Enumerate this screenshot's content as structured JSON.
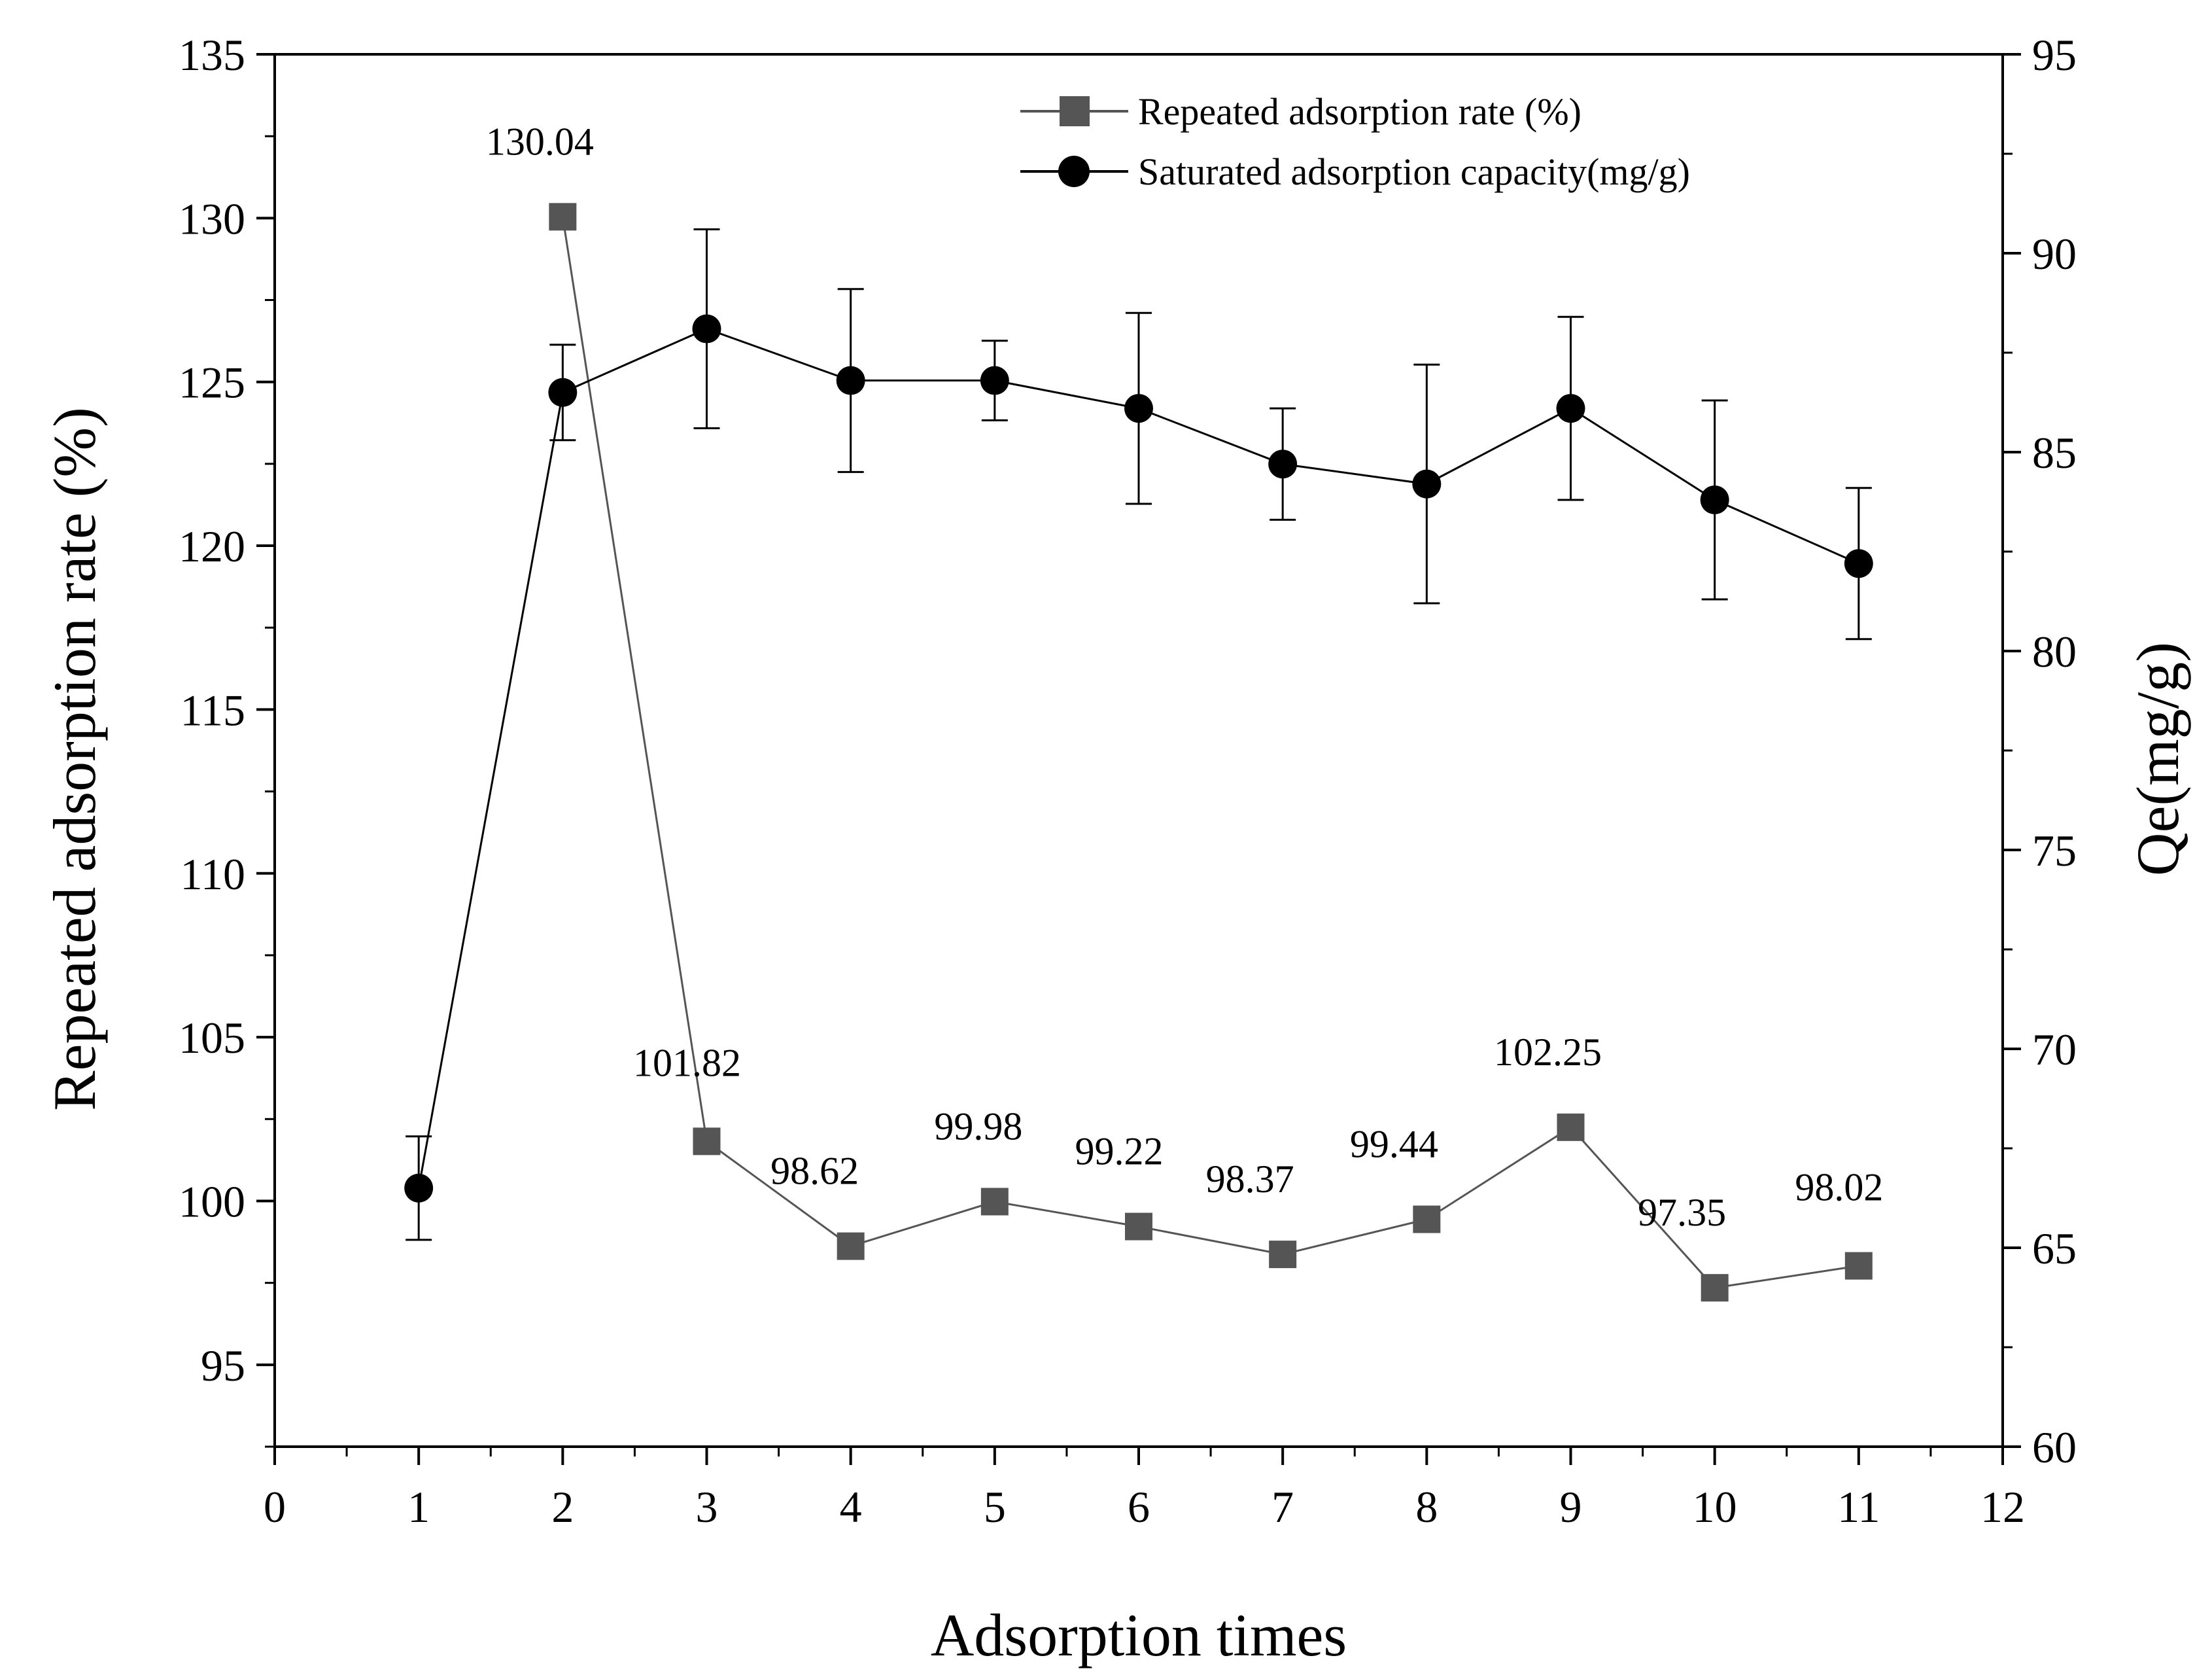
{
  "chart_data": {
    "type": "line",
    "xlabel": "Adsorption times",
    "ylabel_left": "Repeated adsorption rate (%)",
    "ylabel_right": "Qe(mg/g)",
    "xlim": [
      0,
      12
    ],
    "ylim_left": [
      92.5,
      135
    ],
    "ylim_right": [
      60,
      95
    ],
    "x_ticks": [
      0,
      1,
      2,
      3,
      4,
      5,
      6,
      7,
      8,
      9,
      10,
      11,
      12
    ],
    "y_left_ticks": [
      95,
      100,
      105,
      110,
      115,
      120,
      125,
      130,
      135
    ],
    "y_right_ticks": [
      60,
      65,
      70,
      75,
      80,
      85,
      90,
      95
    ],
    "grid": false,
    "legend_position": "top-right",
    "series": [
      {
        "name": "Repeated adsorption rate (%)",
        "axis": "left",
        "marker": "square",
        "color": "#555555",
        "x": [
          2,
          3,
          4,
          5,
          6,
          7,
          8,
          9,
          10,
          11
        ],
        "values": [
          130.04,
          101.82,
          98.62,
          99.98,
          99.22,
          98.37,
          99.44,
          102.25,
          97.35,
          98.02
        ],
        "labels": [
          "130.04",
          "101.82",
          "98.62",
          "99.98",
          "99.22",
          "98.37",
          "99.44",
          "102.25",
          "97.35",
          "98.02"
        ]
      },
      {
        "name": "Saturated adsorption capacity(mg/g)",
        "axis": "right",
        "marker": "circle",
        "color": "#000000",
        "x": [
          1,
          2,
          3,
          4,
          5,
          6,
          7,
          8,
          9,
          10,
          11
        ],
        "values": [
          66.5,
          86.5,
          88.1,
          86.8,
          86.8,
          86.1,
          84.7,
          84.2,
          86.1,
          83.8,
          82.2
        ],
        "error": [
          1.3,
          1.2,
          2.5,
          2.3,
          1.0,
          2.4,
          1.4,
          3.0,
          2.3,
          2.5,
          1.9
        ]
      }
    ]
  }
}
